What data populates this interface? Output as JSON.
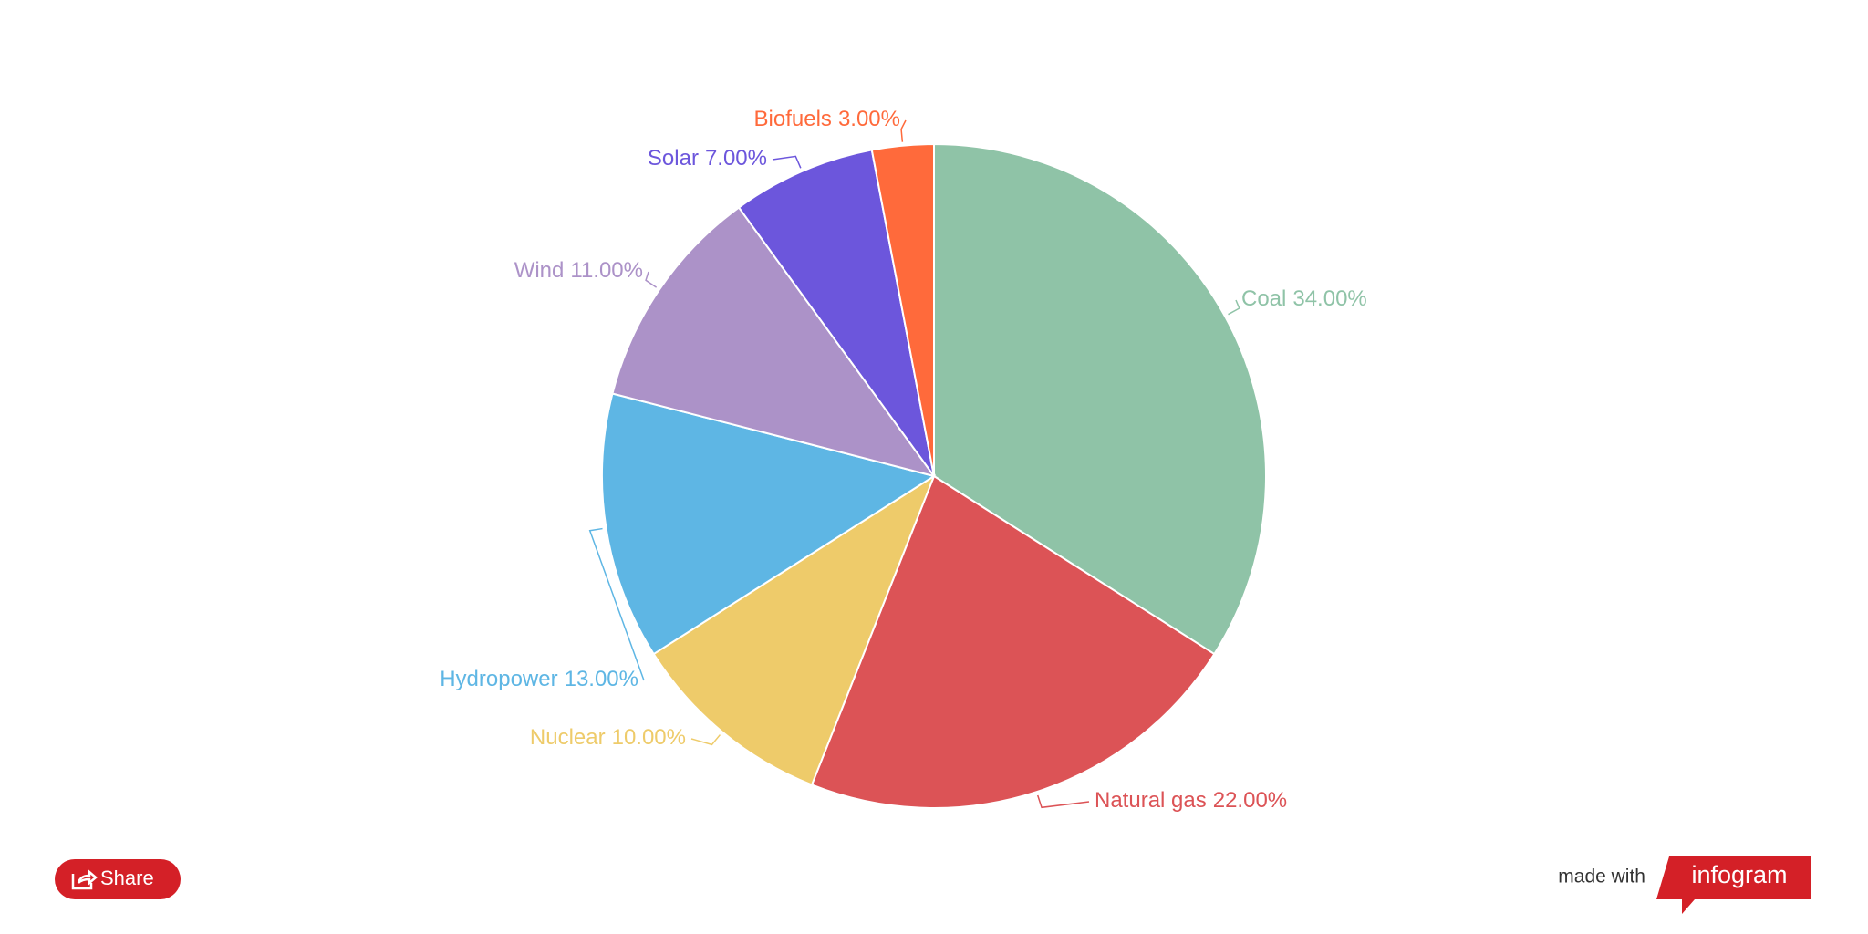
{
  "chart_data": {
    "type": "pie",
    "categories": [
      "Coal",
      "Natural gas",
      "Nuclear",
      "Hydropower",
      "Wind",
      "Solar",
      "Biofuels"
    ],
    "values": [
      34,
      22,
      10,
      13,
      11,
      7,
      3
    ],
    "value_labels": [
      "34.00%",
      "22.00%",
      "10.00%",
      "13.00%",
      "11.00%",
      "7.00%",
      "3.00%"
    ],
    "colors": [
      "#8fc3a7",
      "#dc5356",
      "#eecb6a",
      "#5eb6e4",
      "#ac92c8",
      "#6c56dc",
      "#ff6a3b"
    ]
  },
  "footer": {
    "share": "Share",
    "made_with": "made with",
    "brand": "infogram"
  }
}
